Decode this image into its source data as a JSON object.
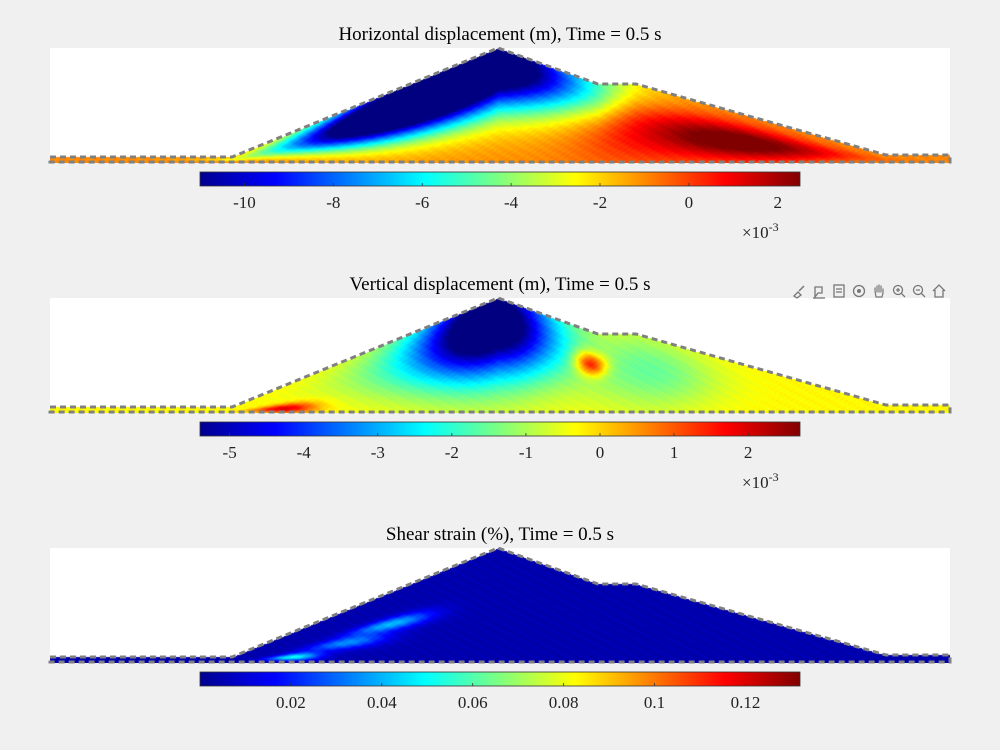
{
  "chart_data": [
    {
      "type": "heatmap",
      "title": "Horizontal displacement (m), Time = 0.5 s",
      "colorbar": {
        "colormap": "jet",
        "range": [
          -11.0,
          2.5
        ],
        "ticks": [
          -10,
          -8,
          -6,
          -4,
          -2,
          0,
          2
        ],
        "tick_labels": [
          "-10",
          "-8",
          "-6",
          "-4",
          "-2",
          "0",
          "2"
        ],
        "exponent_label": "×10",
        "exponent_sup": "-3"
      },
      "field": {
        "description_values": "approximate field levels in colorbar units",
        "base": -1.0,
        "blobs": [
          {
            "fx": 0.39,
            "fy": 0.28,
            "sx": 0.08,
            "sy": 0.22,
            "v": -10.0
          },
          {
            "fx": 0.46,
            "fy": 0.12,
            "sx": 0.12,
            "sy": 0.3,
            "v": -7.0
          },
          {
            "fx": 0.5,
            "fy": 0.05,
            "sx": 0.08,
            "sy": 0.25,
            "v": -6.0
          },
          {
            "fx": 0.32,
            "fy": 0.55,
            "sx": 0.07,
            "sy": 0.2,
            "v": -5.5
          },
          {
            "fx": 0.74,
            "fy": 0.55,
            "sx": 0.06,
            "sy": 0.25,
            "v": 2.2
          },
          {
            "fx": 0.82,
            "fy": 0.65,
            "sx": 0.06,
            "sy": 0.25,
            "v": 1.0
          },
          {
            "fx": 0.64,
            "fy": 0.45,
            "sx": 0.05,
            "sy": 0.4,
            "v": 0.5
          }
        ]
      }
    },
    {
      "type": "heatmap",
      "title": "Vertical displacement (m), Time = 0.5 s",
      "colorbar": {
        "colormap": "jet",
        "range": [
          -5.4,
          2.7
        ],
        "ticks": [
          -5,
          -4,
          -3,
          -2,
          -1,
          0,
          1,
          2
        ],
        "tick_labels": [
          "-5",
          "-4",
          "-3",
          "-2",
          "-1",
          "0",
          "1",
          "2"
        ],
        "exponent_label": "×10",
        "exponent_sup": "-3"
      },
      "field": {
        "base": -0.3,
        "blobs": [
          {
            "fx": 0.49,
            "fy": 0.15,
            "sx": 0.05,
            "sy": 0.32,
            "v": -5.2
          },
          {
            "fx": 0.45,
            "fy": 0.35,
            "sx": 0.08,
            "sy": 0.35,
            "v": -2.5
          },
          {
            "fx": 0.67,
            "fy": 0.45,
            "sx": 0.05,
            "sy": 0.35,
            "v": -1.5
          },
          {
            "fx": 0.6,
            "fy": 0.4,
            "sx": 0.012,
            "sy": 0.1,
            "v": 2.5
          },
          {
            "fx": 0.26,
            "fy": 0.85,
            "sx": 0.025,
            "sy": 0.12,
            "v": 2.0
          }
        ]
      }
    },
    {
      "type": "heatmap",
      "title": "Shear strain (%), Time = 0.5 s",
      "colorbar": {
        "colormap": "jet",
        "range": [
          0.0,
          0.132
        ],
        "ticks": [
          0.02,
          0.04,
          0.06,
          0.08,
          0.1,
          0.12
        ],
        "tick_labels": [
          "0.02",
          "0.04",
          "0.06",
          "0.08",
          "0.1",
          "0.12"
        ],
        "exponent_label": "",
        "exponent_sup": ""
      },
      "field": {
        "base": 0.006,
        "blobs": [
          {
            "fx": 0.38,
            "fy": 0.45,
            "sx": 0.03,
            "sy": 0.06,
            "v": 0.04
          },
          {
            "fx": 0.33,
            "fy": 0.62,
            "sx": 0.03,
            "sy": 0.08,
            "v": 0.035
          },
          {
            "fx": 0.27,
            "fy": 0.82,
            "sx": 0.02,
            "sy": 0.08,
            "v": 0.05
          }
        ]
      }
    }
  ],
  "toolbar": {
    "items": [
      "brush-icon",
      "data-tips-icon",
      "export-icon",
      "rotate-icon",
      "pan-icon",
      "zoom-in-icon",
      "zoom-out-icon",
      "home-icon"
    ]
  }
}
